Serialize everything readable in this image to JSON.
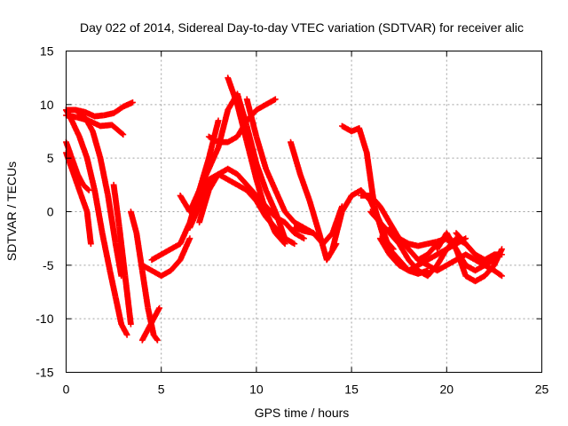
{
  "chart_data": {
    "type": "scatter",
    "title": "Day 022 of 2014, Sidereal Day-to-day VTEC variation (SDTVAR) for receiver alic",
    "xlabel": "GPS time / hours",
    "ylabel": "SDTVAR / TECUs",
    "xlim": [
      0,
      25
    ],
    "ylim": [
      -15,
      15
    ],
    "xticks": [
      "0",
      "5",
      "10",
      "15",
      "20",
      "25"
    ],
    "yticks": [
      "15",
      "10",
      "5",
      "0",
      "-5",
      "-10",
      "-15"
    ],
    "grid": true,
    "marker": "+",
    "color": "#ff0000",
    "series": [
      {
        "x": [
          0.0,
          0.5,
          1.0,
          1.5,
          2.0,
          2.5,
          3.0,
          3.5
        ],
        "y": [
          9.5,
          9.5,
          9.3,
          8.9,
          9.0,
          9.2,
          9.8,
          10.2
        ]
      },
      {
        "x": [
          0.0,
          0.6,
          1.2,
          1.8,
          2.4,
          3.0
        ],
        "y": [
          9.0,
          8.8,
          8.5,
          8.0,
          8.1,
          7.2
        ]
      },
      {
        "x": [
          0.0,
          0.4,
          0.8,
          1.1,
          1.3
        ],
        "y": [
          5.5,
          3.5,
          1.5,
          0.0,
          -3.0
        ]
      },
      {
        "x": [
          0.0,
          0.3,
          0.6,
          0.9,
          1.2
        ],
        "y": [
          6.5,
          5.0,
          3.5,
          2.5,
          2.0
        ]
      },
      {
        "x": [
          0.0,
          0.3,
          0.7,
          1.1,
          1.5,
          1.9,
          2.3,
          2.6,
          2.9,
          3.2
        ],
        "y": [
          9.5,
          8.5,
          7.0,
          5.0,
          2.0,
          -2.0,
          -5.5,
          -8.0,
          -10.5,
          -11.5
        ]
      },
      {
        "x": [
          0.6,
          1.0,
          1.4,
          1.8,
          2.2,
          2.6,
          2.9
        ],
        "y": [
          9.3,
          8.8,
          7.5,
          5.0,
          1.5,
          -3.0,
          -6.0
        ]
      },
      {
        "x": [
          2.5,
          2.8,
          3.1,
          3.4
        ],
        "y": [
          2.5,
          -1.5,
          -6.0,
          -10.5
        ]
      },
      {
        "x": [
          3.4,
          3.7,
          4.0,
          4.3,
          4.6,
          4.8
        ],
        "y": [
          0.0,
          -2.0,
          -5.5,
          -9.0,
          -11.5,
          -12.0
        ]
      },
      {
        "x": [
          4.0,
          4.3,
          4.6,
          4.9
        ],
        "y": [
          -12.0,
          -11.0,
          -10.0,
          -9.0
        ]
      },
      {
        "x": [
          4.0,
          4.5,
          5.0,
          5.5,
          6.0,
          6.5
        ],
        "y": [
          -5.0,
          -5.5,
          -6.0,
          -5.5,
          -4.5,
          -2.5
        ]
      },
      {
        "x": [
          4.5,
          5.0,
          5.5,
          6.0,
          6.5,
          7.0,
          7.5,
          8.0
        ],
        "y": [
          -4.5,
          -4.0,
          -3.5,
          -3.0,
          -1.0,
          2.0,
          5.0,
          8.5
        ]
      },
      {
        "x": [
          6.0,
          6.5,
          7.0,
          7.5,
          8.0,
          8.5,
          9.0,
          9.5,
          10.0,
          10.5,
          11.0,
          11.5
        ],
        "y": [
          1.5,
          0.0,
          2.0,
          4.0,
          6.0,
          9.5,
          11.0,
          8.0,
          4.5,
          2.0,
          0.0,
          -2.5
        ]
      },
      {
        "x": [
          6.5,
          7.0,
          7.5,
          8.0,
          8.5,
          9.0,
          9.5,
          10.0,
          10.5,
          11.0,
          11.5,
          12.0
        ],
        "y": [
          -1.5,
          0.5,
          3.0,
          3.5,
          3.0,
          2.5,
          2.0,
          1.0,
          -0.5,
          -1.5,
          -2.5,
          -3.0
        ]
      },
      {
        "x": [
          7.0,
          7.5,
          8.0,
          8.5,
          9.0,
          9.5,
          10.0,
          10.5,
          11.0,
          11.5,
          12.0,
          12.5
        ],
        "y": [
          -1.0,
          2.0,
          3.5,
          4.0,
          3.5,
          2.5,
          1.5,
          0.5,
          -0.5,
          -1.0,
          -2.0,
          -2.5
        ]
      },
      {
        "x": [
          7.5,
          8.0,
          8.5,
          9.0,
          9.5,
          10.0,
          10.5,
          11.0
        ],
        "y": [
          7.0,
          6.5,
          6.5,
          7.0,
          8.5,
          9.5,
          10.0,
          10.5
        ]
      },
      {
        "x": [
          8.5,
          9.0,
          9.5,
          10.0,
          10.5,
          11.0,
          11.5
        ],
        "y": [
          12.5,
          10.0,
          6.5,
          3.0,
          0.0,
          -2.0,
          -3.0
        ]
      },
      {
        "x": [
          9.5,
          10.0,
          10.5,
          11.0,
          11.5,
          12.0,
          12.5,
          13.0
        ],
        "y": [
          10.5,
          7.0,
          4.0,
          2.0,
          0.0,
          -1.0,
          -1.5,
          -2.0
        ]
      },
      {
        "x": [
          11.8,
          12.3,
          12.8,
          13.3,
          13.7,
          14.2
        ],
        "y": [
          6.5,
          3.5,
          1.0,
          -2.0,
          -4.5,
          -3.0
        ]
      },
      {
        "x": [
          12.0,
          12.5,
          13.0,
          13.5,
          14.0,
          14.5
        ],
        "y": [
          -1.5,
          -1.8,
          -2.0,
          -3.0,
          -2.0,
          0.5
        ]
      },
      {
        "x": [
          14.0,
          14.5,
          15.0,
          15.5
        ],
        "y": [
          -3.5,
          0.0,
          1.5,
          2.0
        ]
      },
      {
        "x": [
          14.5,
          15.0,
          15.4,
          15.8,
          16.2,
          16.7,
          17.2
        ],
        "y": [
          8.0,
          7.5,
          7.8,
          5.5,
          0.5,
          -2.5,
          -3.5
        ]
      },
      {
        "x": [
          15.0,
          15.5,
          16.0,
          16.5,
          17.0,
          17.5,
          18.0,
          18.5,
          19.0
        ],
        "y": [
          1.5,
          2.0,
          1.0,
          -1.0,
          -3.5,
          -4.5,
          -5.5,
          -5.8,
          -5.5
        ]
      },
      {
        "x": [
          15.5,
          16.0,
          16.5,
          17.0,
          17.5,
          18.0,
          18.5,
          19.0,
          19.5,
          20.0
        ],
        "y": [
          1.5,
          1.5,
          0.5,
          -1.0,
          -2.5,
          -3.0,
          -3.2,
          -3.0,
          -2.8,
          -2.5
        ]
      },
      {
        "x": [
          16.0,
          16.5,
          17.0,
          17.5,
          18.0,
          18.5,
          19.0,
          19.5,
          20.0,
          20.5,
          21.0
        ],
        "y": [
          0.0,
          -1.0,
          -2.0,
          -3.0,
          -4.5,
          -5.5,
          -6.0,
          -5.0,
          -3.5,
          -2.5,
          -3.0
        ]
      },
      {
        "x": [
          16.5,
          17.0,
          17.5,
          18.0,
          18.5,
          19.0,
          19.5,
          20.0,
          20.5,
          21.0
        ],
        "y": [
          -2.5,
          -4.0,
          -5.0,
          -5.5,
          -5.0,
          -4.5,
          -4.0,
          -3.5,
          -3.0,
          -2.5
        ]
      },
      {
        "x": [
          17.0,
          17.5,
          18.0,
          18.5,
          19.0,
          19.5,
          20.0,
          20.5,
          21.0,
          21.5,
          22.0,
          22.5
        ],
        "y": [
          -1.5,
          -2.5,
          -3.5,
          -4.5,
          -4.0,
          -3.0,
          -2.5,
          -3.5,
          -5.0,
          -5.5,
          -5.0,
          -4.5
        ]
      },
      {
        "x": [
          18.5,
          19.0,
          19.5,
          20.0,
          20.5,
          21.0,
          21.5,
          22.0,
          22.5,
          22.9
        ],
        "y": [
          -4.5,
          -5.0,
          -5.5,
          -5.0,
          -4.5,
          -4.0,
          -4.5,
          -5.0,
          -5.5,
          -6.0
        ]
      },
      {
        "x": [
          19.5,
          20.0,
          20.5,
          21.0,
          21.5,
          22.0,
          22.5,
          22.9
        ],
        "y": [
          -3.5,
          -2.0,
          -3.5,
          -6.0,
          -6.5,
          -6.0,
          -5.0,
          -3.5
        ]
      },
      {
        "x": [
          20.5,
          21.0,
          21.5,
          22.0,
          22.5,
          22.9
        ],
        "y": [
          -2.0,
          -3.0,
          -4.0,
          -4.5,
          -4.0,
          -4.0
        ]
      }
    ]
  }
}
